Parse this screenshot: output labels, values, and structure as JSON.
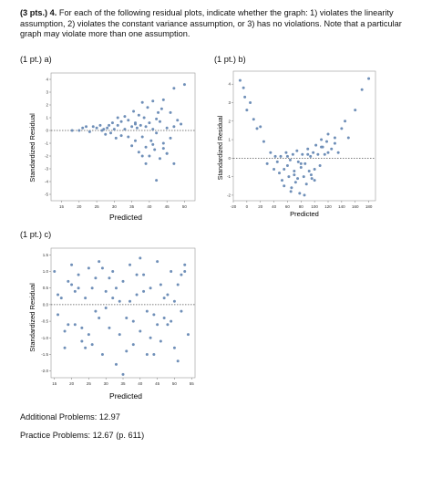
{
  "question": {
    "points": "(3 pts.) 4.",
    "text": "For each of the following residual plots, indicate whether the graph: 1) violates the linearity assumption, 2) violates the constant variance assumption, or 3) has no violations. Note that a particular graph may violate more than one assumption."
  },
  "plots": [
    {
      "label": "(1 pt.) a)",
      "xlabel": "Predicted",
      "ylabel": "Standardized Residual",
      "xticks": [
        "15",
        "20",
        "25",
        "30",
        "35",
        "40",
        "45",
        "50"
      ],
      "yticks": [
        "4",
        "3",
        "2",
        "1",
        "0",
        "-1",
        "-2",
        "-3",
        "-4",
        "-5"
      ],
      "ylim": [
        -5.5,
        4.5
      ]
    },
    {
      "label": "(1 pt.) b)",
      "xlabel": "Predicted",
      "ylabel": "Standardized Residual",
      "xticks": [
        "-20",
        "0",
        "20",
        "40",
        "60",
        "80",
        "100",
        "120",
        "140",
        "160",
        "180"
      ],
      "yticks": [
        "4",
        "3",
        "2",
        "1",
        "0",
        "-1",
        "-2"
      ],
      "ylim": [
        -2.3,
        4.7
      ]
    },
    {
      "label": "(1 pt.) c)",
      "xlabel": "Predicted",
      "ylabel": "Standardized Residual",
      "xticks": [
        "15",
        "20",
        "25",
        "30",
        "35",
        "40",
        "45",
        "50",
        "55"
      ],
      "yticks": [
        "1.5",
        "1.0",
        "0.5",
        "0.0",
        "-0.5",
        "-1.0",
        "-1.5",
        "-2.0"
      ],
      "ylim": [
        -2.2,
        1.7
      ]
    }
  ],
  "chart_data": [
    {
      "type": "scatter",
      "xlim": [
        12,
        53
      ],
      "ylim": [
        -5.5,
        4.5
      ],
      "x": [
        18,
        20,
        21,
        22,
        23,
        24,
        25,
        26,
        26.5,
        27,
        27.5,
        28,
        28.5,
        29,
        29.5,
        30,
        30.5,
        31,
        31,
        32,
        32,
        33,
        33,
        34,
        34,
        35,
        35,
        35.5,
        36,
        36,
        36.5,
        37,
        37,
        37.5,
        38,
        38,
        38.5,
        39,
        39,
        39.5,
        40,
        40,
        40.5,
        41,
        41,
        41.5,
        42,
        42,
        42.5,
        43,
        43,
        43.5,
        44,
        44,
        45,
        45,
        46,
        46,
        47,
        47,
        48,
        49,
        50,
        42,
        39,
        41,
        44,
        45,
        47,
        38,
        36
      ],
      "y": [
        0,
        0,
        0.2,
        0.3,
        -0.1,
        0.3,
        0.2,
        0.4,
        0,
        0.1,
        -0.3,
        0.2,
        0.4,
        -0.2,
        0.6,
        0.1,
        -0.6,
        0.4,
        1,
        0.7,
        -0.4,
        1.1,
        0.1,
        -0.5,
        0.8,
        0.3,
        -1.2,
        1.5,
        0.6,
        -0.8,
        0.2,
        1.2,
        -1.7,
        0.4,
        2.2,
        -0.5,
        1,
        -1.3,
        0.3,
        1.8,
        -2,
        0.6,
        -0.8,
        2.3,
        0.1,
        -1.5,
        0.9,
        -0.2,
        1.4,
        -2.2,
        0.7,
        1.7,
        -1,
        2.4,
        -1.8,
        0.2,
        1.4,
        -0.6,
        3.3,
        -2.6,
        0.8,
        0.5,
        3.6,
        -3.9,
        -2.6,
        -1.1,
        -1.4,
        -1.8,
        0.3,
        -2,
        0.5
      ]
    },
    {
      "type": "scatter",
      "xlim": [
        -20,
        190
      ],
      "ylim": [
        -2.3,
        4.7
      ],
      "x": [
        -10,
        -5,
        -3,
        0,
        5,
        10,
        15,
        20,
        25,
        30,
        35,
        40,
        42,
        45,
        48,
        50,
        52,
        55,
        58,
        60,
        62,
        64,
        66,
        68,
        70,
        72,
        74,
        76,
        78,
        80,
        82,
        84,
        86,
        88,
        90,
        92,
        94,
        96,
        98,
        100,
        102,
        105,
        108,
        110,
        112,
        115,
        118,
        120,
        125,
        130,
        135,
        140,
        145,
        150,
        160,
        170,
        180,
        55,
        65,
        75,
        85,
        95,
        60,
        70,
        80,
        90,
        100,
        110,
        120,
        130
      ],
      "y": [
        4.2,
        3.8,
        3.3,
        2.6,
        3,
        2.1,
        1.6,
        1.7,
        0.9,
        -0.3,
        0.3,
        -0.6,
        0.1,
        -0.2,
        -0.8,
        0.1,
        -1.2,
        -0.6,
        0.3,
        -0.4,
        -1,
        -0.1,
        -1.6,
        0.2,
        -0.7,
        -1.3,
        0.4,
        -0.2,
        -1.9,
        -0.5,
        0.2,
        -1,
        -0.3,
        -1.4,
        0.5,
        -0.7,
        0.1,
        -1.1,
        0.3,
        -0.6,
        0.7,
        0.2,
        -0.4,
        1,
        0.6,
        0.2,
        0.9,
        1.3,
        0.5,
        1.1,
        0.3,
        1.6,
        2,
        1.1,
        2.6,
        3.7,
        4.3,
        -1.5,
        -1.8,
        -1.1,
        -2,
        -0.9,
        0.1,
        -0.9,
        -0.3,
        0.2,
        -1.2,
        0.6,
        0.3,
        0.8
      ]
    },
    {
      "type": "scatter",
      "xlim": [
        14,
        56
      ],
      "ylim": [
        -2.2,
        1.7
      ],
      "x": [
        15,
        16,
        17,
        18,
        19,
        20,
        21,
        22,
        23,
        24,
        25,
        26,
        27,
        28,
        29,
        30,
        31,
        32,
        33,
        34,
        35,
        36,
        37,
        38,
        39,
        40,
        41,
        42,
        43,
        44,
        45,
        46,
        47,
        48,
        49,
        50,
        51,
        52,
        53,
        54,
        16,
        19,
        22,
        25,
        28,
        31,
        34,
        37,
        40,
        43,
        46,
        49,
        52,
        18,
        21,
        24,
        27,
        30,
        33,
        36,
        39,
        42,
        45,
        48,
        51,
        20,
        26,
        32,
        38,
        44,
        50,
        23,
        29,
        35,
        41,
        47,
        53
      ],
      "y": [
        1,
        -0.3,
        0.2,
        -1.3,
        0.7,
        1.2,
        -0.6,
        0.9,
        -1.1,
        0.2,
        -0.9,
        0.5,
        -0.2,
        1.3,
        -1.5,
        0.4,
        -0.7,
        1,
        -1.8,
        0.1,
        0.7,
        -0.4,
        1.2,
        -1.2,
        0.3,
        -0.8,
        0.9,
        -1.5,
        0.5,
        -0.3,
        1.3,
        -1.1,
        0.2,
        -0.6,
        1,
        -1.3,
        0.6,
        -0.2,
        1.2,
        -0.9,
        0.3,
        -0.6,
        0.5,
        1.1,
        -0.4,
        0.8,
        -0.9,
        0.1,
        1.4,
        -1,
        0.6,
        -0.5,
        0.9,
        -0.8,
        0.4,
        -1.3,
        0.8,
        -0.1,
        0.5,
        -1.4,
        0.9,
        -0.2,
        -0.6,
        0.3,
        -1.7,
        0.6,
        -1.2,
        0.2,
        -0.5,
        -1.5,
        0.1,
        -0.7,
        1.1,
        -2.1,
        0.4,
        -0.4,
        1
      ]
    }
  ],
  "footer": {
    "additional": "Additional Problems: 12.97",
    "practice": "Practice Problems: 12.67 (p. 611)"
  }
}
